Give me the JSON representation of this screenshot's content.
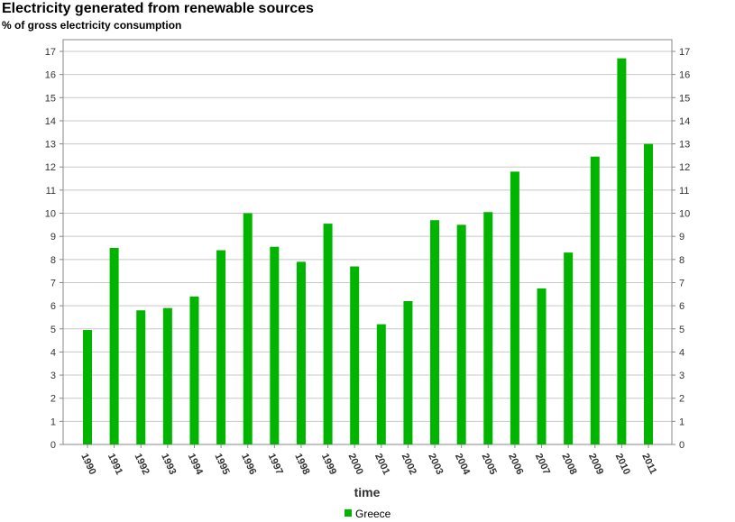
{
  "chart_data": {
    "type": "bar",
    "title": "Electricity generated from renewable sources",
    "subtitle": "% of gross electricity consumption",
    "xlabel": "time",
    "ylabel": "",
    "ylim": [
      0,
      17.5
    ],
    "yticks": [
      0,
      1,
      2,
      3,
      4,
      5,
      6,
      7,
      8,
      9,
      10,
      11,
      12,
      13,
      14,
      15,
      16,
      17
    ],
    "grid": true,
    "legend_position": "bottom",
    "categories": [
      "1990",
      "1991",
      "1992",
      "1993",
      "1994",
      "1995",
      "1996",
      "1997",
      "1998",
      "1999",
      "2000",
      "2001",
      "2002",
      "2003",
      "2004",
      "2005",
      "2006",
      "2007",
      "2008",
      "2009",
      "2010",
      "2011"
    ],
    "series": [
      {
        "name": "Greece",
        "color": "#00b400",
        "values": [
          4.95,
          8.5,
          5.8,
          5.9,
          6.4,
          8.4,
          10.0,
          8.55,
          7.9,
          9.55,
          7.7,
          5.2,
          6.2,
          9.7,
          9.5,
          10.05,
          11.8,
          6.75,
          8.3,
          12.45,
          16.7,
          13.0
        ]
      }
    ]
  }
}
